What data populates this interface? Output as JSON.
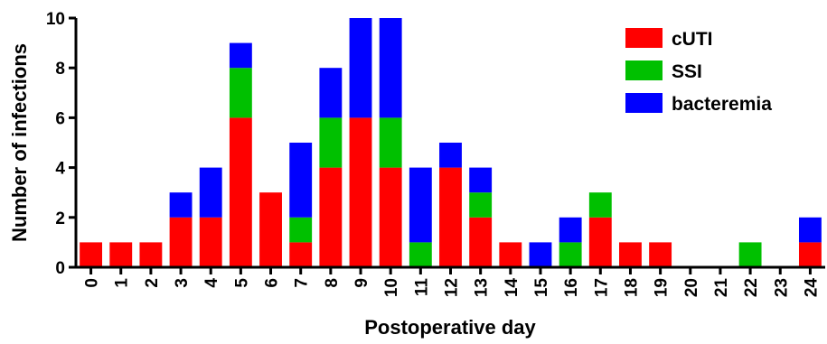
{
  "chart_data": {
    "type": "bar",
    "stacked": true,
    "xlabel": "Postoperative day",
    "ylabel": "Number of infections",
    "categories": [
      "0",
      "1",
      "2",
      "3",
      "4",
      "5",
      "6",
      "7",
      "8",
      "9",
      "10",
      "11",
      "12",
      "13",
      "14",
      "15",
      "16",
      "17",
      "18",
      "19",
      "20",
      "21",
      "22",
      "23",
      "24"
    ],
    "yticks": [
      "0",
      "2",
      "4",
      "6",
      "8",
      "10"
    ],
    "ylim": [
      0,
      10
    ],
    "grid": false,
    "legend_position": "top-right",
    "series": [
      {
        "name": "cUTI",
        "color": "#ff0000",
        "values": [
          1,
          1,
          1,
          2,
          2,
          6,
          3,
          1,
          4,
          6,
          4,
          0,
          4,
          2,
          1,
          0,
          0,
          2,
          1,
          1,
          0,
          0,
          0,
          0,
          1
        ]
      },
      {
        "name": "SSI",
        "color": "#00c000",
        "values": [
          0,
          0,
          0,
          0,
          0,
          2,
          0,
          1,
          2,
          0,
          2,
          1,
          0,
          1,
          0,
          0,
          1,
          1,
          0,
          0,
          0,
          0,
          1,
          0,
          0
        ]
      },
      {
        "name": "bacteremia",
        "color": "#0000ff",
        "values": [
          0,
          0,
          0,
          1,
          2,
          1,
          0,
          3,
          2,
          4,
          4,
          3,
          1,
          1,
          0,
          1,
          1,
          0,
          0,
          0,
          0,
          0,
          0,
          0,
          1
        ]
      }
    ]
  }
}
